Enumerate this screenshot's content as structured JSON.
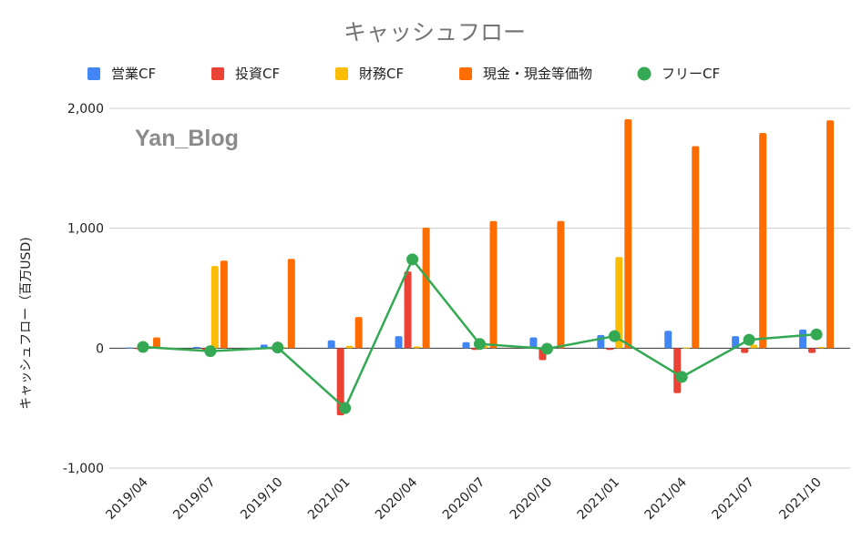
{
  "chart_data": {
    "type": "bar",
    "title": "キャッシュフロー",
    "ylabel": "キャッシュフロー（百万USD)",
    "xlabel": "",
    "ylim": [
      -1000,
      2000
    ],
    "yticks": [
      -1000,
      0,
      1000,
      2000
    ],
    "ytick_labels": [
      "-1,000",
      "0",
      "1,000",
      "2,000"
    ],
    "grid": true,
    "legend_position": "top",
    "watermark": "Yan_Blog",
    "categories": [
      "2019/04",
      "2019/07",
      "2019/10",
      "2021/01",
      "2020/04",
      "2020/07",
      "2020/10",
      "2021/01",
      "2021/04",
      "2021/07",
      "2021/10"
    ],
    "series": [
      {
        "name": "営業CF",
        "type": "bar",
        "color": "#4285f4",
        "values": [
          5,
          10,
          30,
          65,
          100,
          50,
          90,
          110,
          145,
          100,
          155
        ]
      },
      {
        "name": "投資CF",
        "type": "bar",
        "color": "#ea4335",
        "values": [
          -5,
          -15,
          -10,
          -560,
          640,
          -15,
          -100,
          -15,
          -375,
          -40,
          -40
        ]
      },
      {
        "name": "財務CF",
        "type": "bar",
        "color": "#fbbc04",
        "values": [
          10,
          685,
          10,
          20,
          15,
          20,
          10,
          760,
          5,
          30,
          10
        ]
      },
      {
        "name": "現金・現金等価物",
        "type": "bar",
        "color": "#ff6d01",
        "values": [
          90,
          730,
          745,
          260,
          1005,
          1060,
          1060,
          1910,
          1685,
          1795,
          1900
        ]
      },
      {
        "name": "フリーCF",
        "type": "line",
        "color": "#34a853",
        "values": [
          10,
          -25,
          5,
          -500,
          740,
          35,
          -5,
          100,
          -240,
          70,
          115
        ]
      }
    ]
  }
}
